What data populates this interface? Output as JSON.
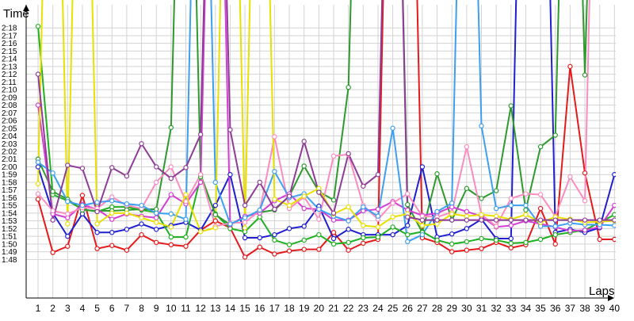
{
  "chart_data": {
    "type": "line",
    "title": "",
    "ylabel": "Time",
    "xlabel": "Laps",
    "grid": true,
    "legend": "none",
    "x": [
      1,
      2,
      3,
      4,
      5,
      6,
      7,
      8,
      9,
      10,
      11,
      12,
      13,
      14,
      15,
      16,
      17,
      18,
      19,
      20,
      21,
      22,
      23,
      24,
      25,
      26,
      27,
      28,
      29,
      30,
      31,
      32,
      33,
      34,
      35,
      36,
      37,
      38,
      39,
      40
    ],
    "xlim": [
      1,
      40
    ],
    "ylim_seconds": [
      103,
      141
    ],
    "y_tick_labels": [
      "1:48",
      "1:49",
      "1:50",
      "1:51",
      "1:52",
      "1:53",
      "1:54",
      "1:55",
      "1:56",
      "1:57",
      "1:58",
      "1:59",
      "2:00",
      "2:01",
      "2:02",
      "2:03",
      "2:04",
      "2:05",
      "2:06",
      "2:07",
      "2:08",
      "2:09",
      "2:10",
      "2:11",
      "2:12",
      "2:13",
      "2:14",
      "2:15",
      "2:16",
      "2:17",
      "2:18"
    ],
    "y_tick_values_seconds": [
      108,
      109,
      110,
      111,
      112,
      113,
      114,
      115,
      116,
      117,
      118,
      119,
      120,
      121,
      122,
      123,
      124,
      125,
      126,
      127,
      128,
      129,
      130,
      131,
      132,
      133,
      134,
      135,
      136,
      137,
      138
    ],
    "series": [
      {
        "color": "#e41a1c",
        "values": [
          115.8,
          108.9,
          109.7,
          116.3,
          109.4,
          109.8,
          109.2,
          111.2,
          110.2,
          109.9,
          109.7,
          111.8,
          113.0,
          112.1,
          108.3,
          109.6,
          108.7,
          109.1,
          109.3,
          109.3,
          111.5,
          109.2,
          110.1,
          110.6,
          200,
          200,
          110.8,
          110.2,
          109.0,
          109.2,
          109.4,
          110.2,
          109.5,
          109.9,
          114.6,
          110.0,
          133.0,
          119.2,
          110.6,
          110.6
        ]
      },
      {
        "color": "#1f1fd0",
        "values": [
          120.0,
          114.0,
          111.0,
          113.9,
          111.5,
          111.5,
          111.9,
          112.6,
          111.9,
          112.4,
          112.8,
          111.8,
          115.0,
          119.0,
          110.8,
          110.8,
          111.2,
          112.0,
          112.3,
          114.9,
          110.7,
          111.9,
          111.2,
          111.2,
          111.2,
          112.4,
          120.0,
          110.9,
          111.3,
          112.0,
          113.2,
          110.7,
          110.7,
          200,
          200,
          111.5,
          111.9,
          111.5,
          112.1,
          119.0
        ]
      },
      {
        "color": "#21b021",
        "values": [
          138.2,
          116.4,
          115.6,
          114.5,
          114.2,
          114.8,
          114.8,
          114.4,
          114.1,
          110.9,
          110.9,
          118.7,
          113.9,
          112.0,
          111.6,
          113.5,
          110.5,
          109.9,
          110.5,
          111.2,
          110.0,
          110.2,
          110.8,
          110.9,
          112.2,
          111.2,
          111.6,
          110.5,
          110.0,
          110.3,
          110.7,
          110.5,
          110.1,
          110.2,
          110.6,
          111.2,
          111.5,
          111.8,
          112.8,
          113.8
        ]
      },
      {
        "color": "#2e9a2e",
        "values": [
          121.0,
          116.8,
          115.8,
          114.4,
          114.3,
          114.3,
          114.4,
          114.5,
          114.5,
          125.1,
          200,
          119.0,
          113.8,
          112.5,
          113.5,
          114.1,
          114.4,
          116.2,
          120.1,
          116.8,
          115.7,
          130.3,
          200,
          200,
          200,
          115.1,
          111.5,
          119.1,
          113.1,
          117.2,
          115.9,
          116.9,
          127.9,
          114.4,
          122.6,
          124.1,
          200,
          131.9,
          200,
          200
        ]
      },
      {
        "color": "#d23fd2",
        "values": [
          128.0,
          113.9,
          113.4,
          115.1,
          114.5,
          113.2,
          113.9,
          113.6,
          113.4,
          116.4,
          115.2,
          118.0,
          200,
          112.5,
          113.6,
          114.0,
          115.6,
          116.5,
          114.6,
          114.5,
          113.1,
          113.1,
          114.3,
          114.5,
          115.5,
          114.4,
          113.7,
          114.0,
          114.8,
          114.2,
          113.6,
          112.2,
          112.4,
          113.0,
          112.6,
          112.2,
          111.7,
          111.8,
          112.2,
          115.0
        ]
      },
      {
        "color": "#fb8cc0",
        "values": [
          116.5,
          114.3,
          113.9,
          114.7,
          114.6,
          116.1,
          115.0,
          114.6,
          118.0,
          120.0,
          115.5,
          119.0,
          112.3,
          112.7,
          112.8,
          114.3,
          123.9,
          114.6,
          116.1,
          113.2,
          121.4,
          121.6,
          115.0,
          113.2,
          115.3,
          116.5,
          113.6,
          113.5,
          114.1,
          122.6,
          113.8,
          112.3,
          115.9,
          116.5,
          116.4,
          113.6,
          118.7,
          115.6,
          200,
          200
        ]
      },
      {
        "color": "#3c9ff0",
        "values": [
          120.6,
          119.2,
          115.5,
          115.0,
          115.4,
          115.6,
          115.2,
          115.0,
          114.0,
          113.9,
          113.2,
          200,
          118.0,
          112.6,
          113.4,
          114.4,
          119.4,
          116.0,
          116.5,
          114.5,
          113.6,
          113.0,
          114.8,
          113.6,
          125.0,
          110.3,
          111.2,
          114.2,
          115.3,
          200,
          125.3,
          114.6,
          115.0,
          115.0,
          112.3,
          112.3,
          112.7,
          112.5,
          112.5,
          112.4
        ]
      },
      {
        "color": "#e8e000",
        "values": [
          117.8,
          200,
          112.6,
          200,
          112.6,
          114.0,
          114.0,
          113.4,
          112.8,
          112.2,
          116.4,
          111.6,
          112.1,
          200,
          112.1,
          200,
          115.8,
          115.0,
          116.2,
          117.2,
          113.9,
          114.8,
          112.4,
          112.2,
          113.5,
          113.9,
          112.4,
          112.6,
          113.9,
          113.6,
          113.8,
          113.6,
          113.2,
          113.8,
          112.8,
          113.5,
          113.2,
          112.8,
          112.9,
          113.0
        ]
      },
      {
        "color": "#8e3c96",
        "values": [
          132.0,
          113.1,
          120.2,
          119.8,
          114.2,
          119.9,
          118.8,
          123.0,
          120.0,
          118.5,
          119.9,
          124.2,
          200,
          124.8,
          115.0,
          118.0,
          114.5,
          116.2,
          123.3,
          116.7,
          114.0,
          121.7,
          117.5,
          119.0,
          200,
          113.5,
          113.1,
          113.1,
          113.1,
          113.1,
          113.1,
          113.1,
          113.1,
          113.1,
          113.1,
          113.1,
          113.1,
          113.1,
          113.1,
          113.1
        ]
      }
    ]
  }
}
